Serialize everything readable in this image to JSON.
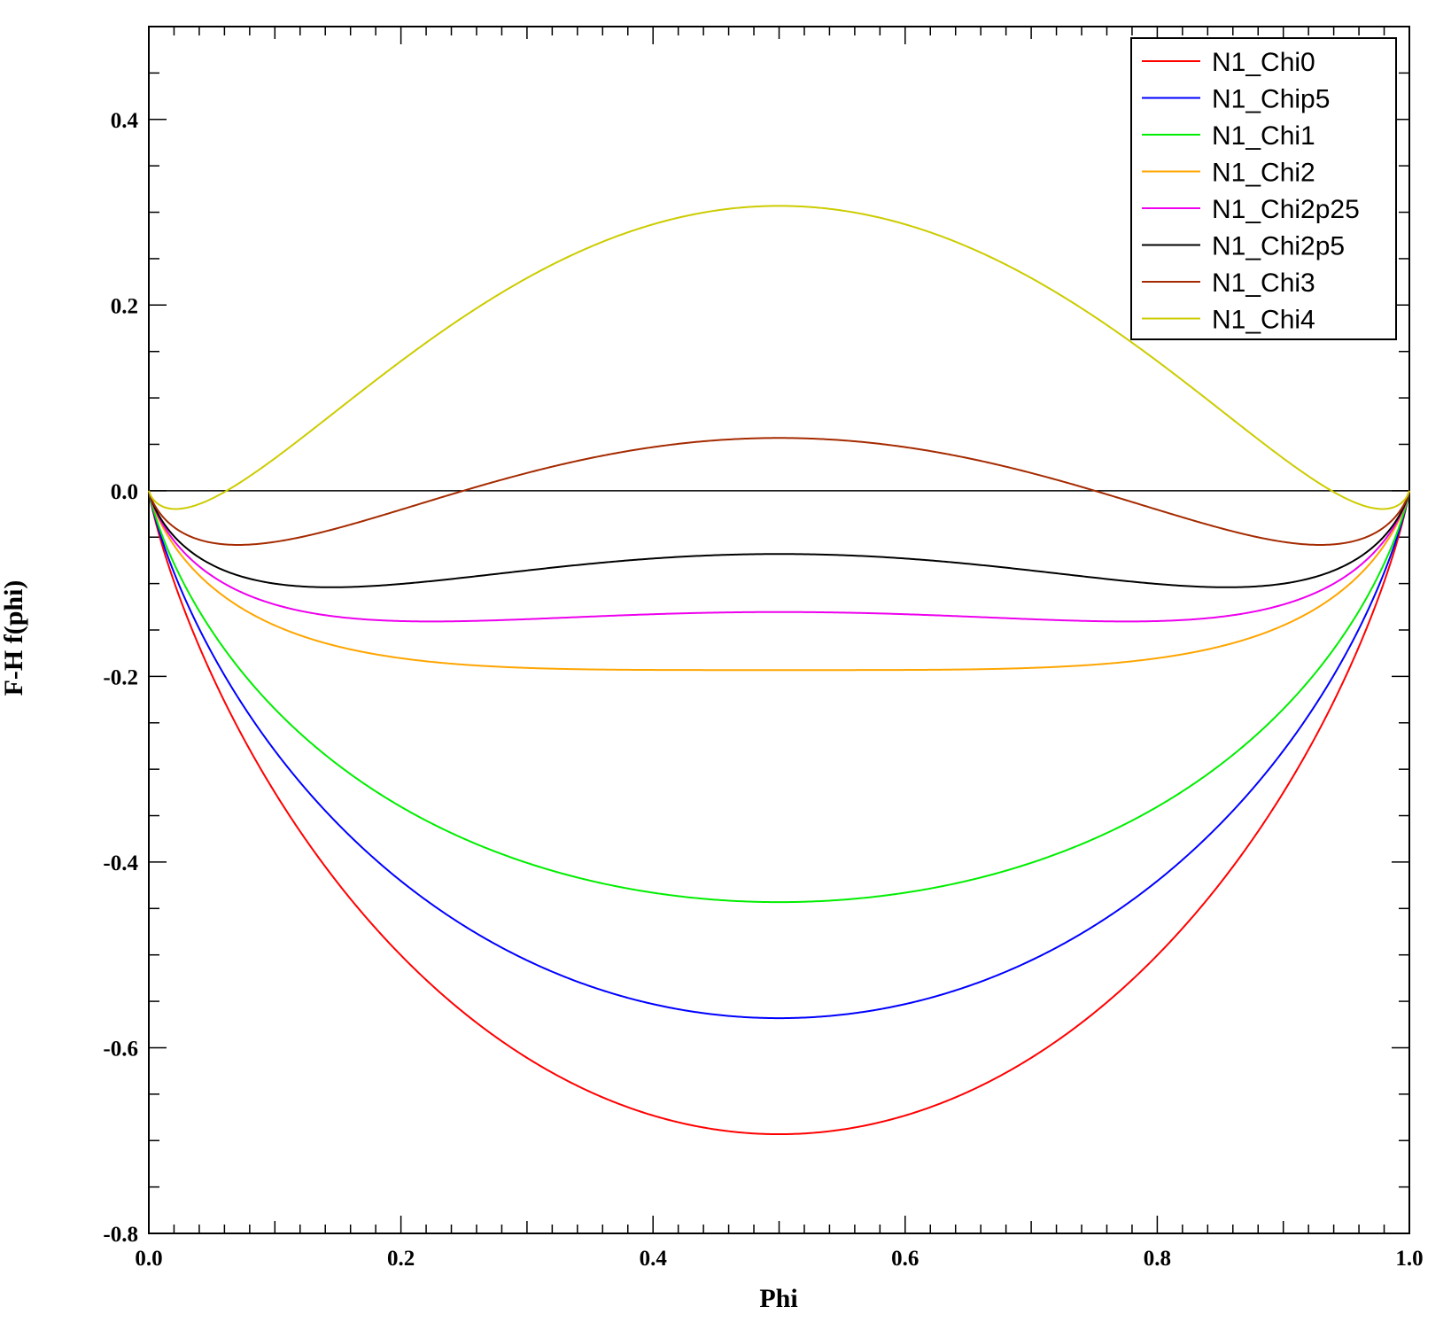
{
  "chart_data": {
    "type": "line",
    "xlabel": "Phi",
    "ylabel": "F-H f(phi)",
    "xlim": [
      0.0,
      1.0
    ],
    "ylim": [
      -0.8,
      0.5
    ],
    "x_ticks": [
      "0.0",
      "0.2",
      "0.4",
      "0.6",
      "0.8",
      "1.0"
    ],
    "y_ticks": [
      "-0.8",
      "-0.6",
      "-0.4",
      "-0.2",
      "0.0",
      "0.2",
      "0.4"
    ],
    "zero_line": true,
    "grid": false,
    "legend_position": "top-right",
    "model": "f(phi) = phi*ln(phi) + (1-phi)*ln(1-phi) + chi*phi*(1-phi)",
    "series": [
      {
        "name": "N1_Chi0",
        "chi": 0,
        "color": "#ff0000"
      },
      {
        "name": "N1_Chip5",
        "chi": 0.5,
        "color": "#0000ff"
      },
      {
        "name": "N1_Chi1",
        "chi": 1,
        "color": "#00ee00"
      },
      {
        "name": "N1_Chi2",
        "chi": 2,
        "color": "#ffa500"
      },
      {
        "name": "N1_Chi2p25",
        "chi": 2.25,
        "color": "#ee00ee"
      },
      {
        "name": "N1_Chi2p5",
        "chi": 2.5,
        "color": "#000000"
      },
      {
        "name": "N1_Chi3",
        "chi": 3,
        "color": "#a52a00"
      },
      {
        "name": "N1_Chi4",
        "chi": 4,
        "color": "#cccc00"
      }
    ]
  }
}
